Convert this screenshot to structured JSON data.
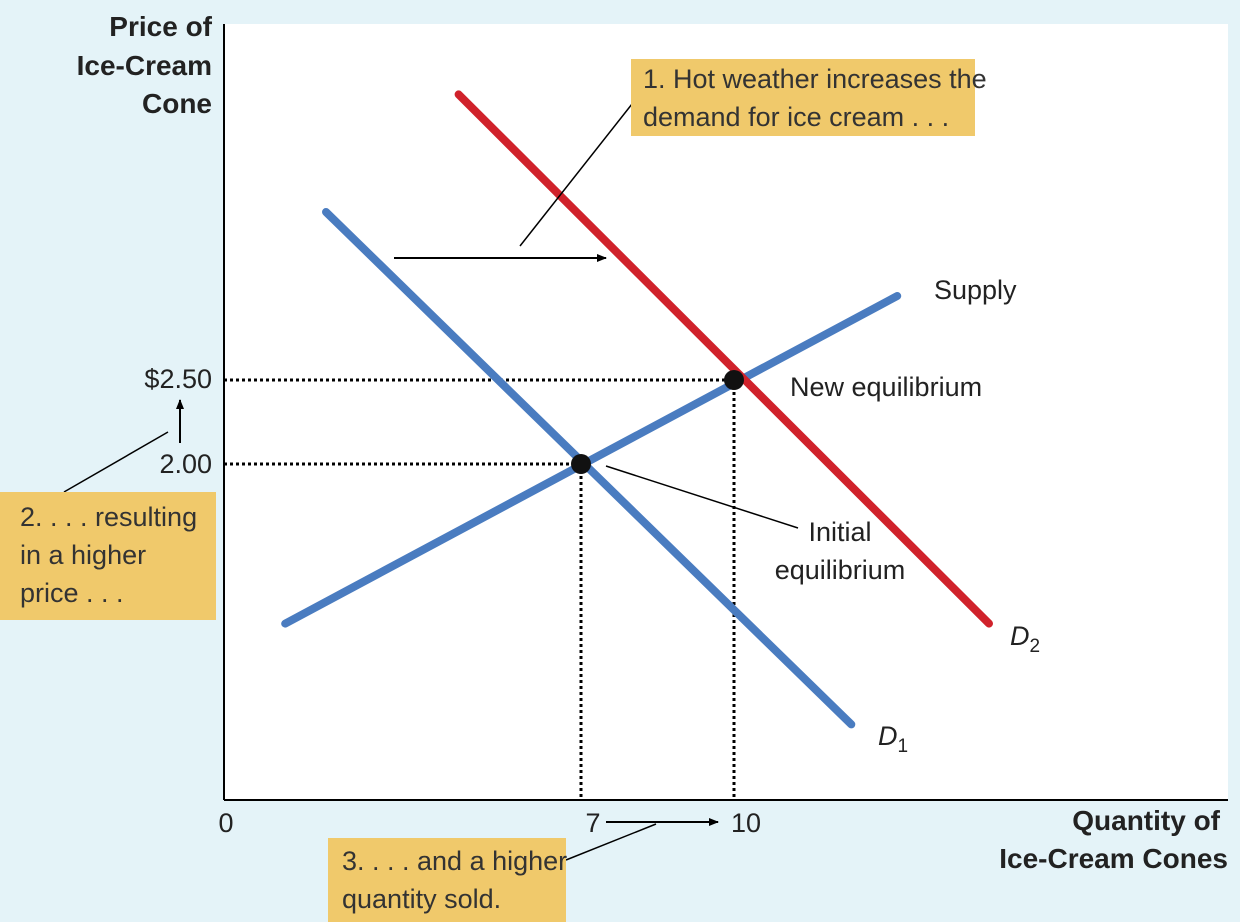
{
  "chart_data": {
    "type": "line",
    "ylabel_lines": [
      "Price of",
      "Ice-Cream",
      "Cone"
    ],
    "xlabel_lines": [
      "Quantity of",
      "Ice-Cream Cones"
    ],
    "origin_label": "0",
    "x_ticks": [
      {
        "value": 7,
        "label": "7"
      },
      {
        "value": 10,
        "label": "10"
      }
    ],
    "y_ticks": [
      {
        "value": 2.0,
        "label": "2.00"
      },
      {
        "value": 2.5,
        "label": "$2.50"
      }
    ],
    "series": [
      {
        "name": "Supply",
        "color": "#4a7cc0",
        "points": [
          [
            1.2,
            1.05
          ],
          [
            13.2,
            3.0
          ]
        ]
      },
      {
        "name": "D1",
        "color": "#4a7cc0",
        "points": [
          [
            2.0,
            3.5
          ],
          [
            12.3,
            0.45
          ]
        ]
      },
      {
        "name": "D2",
        "color": "#d0222b",
        "points": [
          [
            4.6,
            4.2
          ],
          [
            15.0,
            1.05
          ]
        ]
      }
    ],
    "equilibria": [
      {
        "name": "Initial equilibrium",
        "x": 7,
        "y": 2.0,
        "label_lines": [
          "Initial",
          "equilibrium"
        ]
      },
      {
        "name": "New equilibrium",
        "x": 10,
        "y": 2.5,
        "label_lines": [
          "New equilibrium"
        ]
      }
    ],
    "labels": {
      "supply": "Supply",
      "new_eq": "New equilibrium",
      "initial_eq": [
        "Initial",
        "equilibrium"
      ],
      "d1": {
        "main": "D",
        "sub": "1"
      },
      "d2": {
        "main": "D",
        "sub": "2"
      }
    },
    "annotations": [
      {
        "id": "demand-shift",
        "lines": [
          "1. Hot weather increases the",
          "demand for ice cream . . ."
        ]
      },
      {
        "id": "higher-price",
        "lines": [
          "2. . . . resulting",
          "in a higher",
          "price . . ."
        ]
      },
      {
        "id": "higher-quantity",
        "lines": [
          "3. . . . and a higher",
          "quantity sold."
        ]
      }
    ],
    "xlim": [
      0,
      16
    ],
    "ylim": [
      0,
      4.5
    ]
  }
}
